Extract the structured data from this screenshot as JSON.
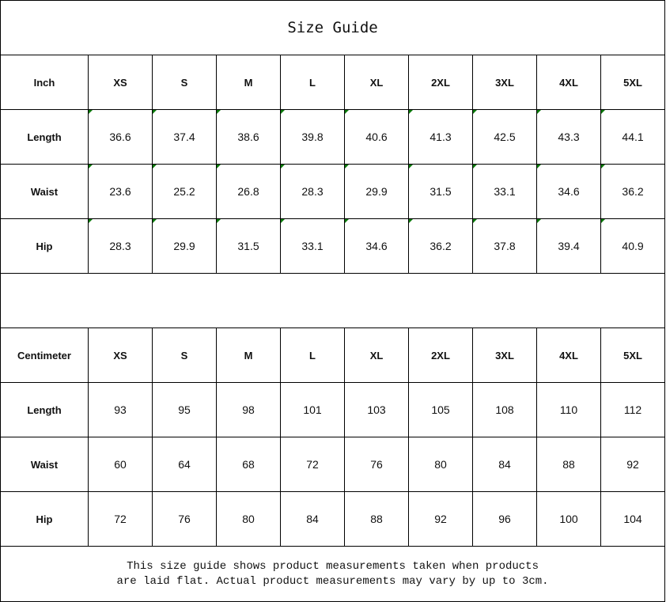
{
  "title": "Size Guide",
  "sizes": [
    "XS",
    "S",
    "M",
    "L",
    "XL",
    "2XL",
    "3XL",
    "4XL",
    "5XL"
  ],
  "comment_marker_color": "#0a7a0a",
  "inch": {
    "unit_label": "Inch",
    "rows": [
      {
        "label": "Length",
        "values": [
          "36.6",
          "37.4",
          "38.6",
          "39.8",
          "40.6",
          "41.3",
          "42.5",
          "43.3",
          "44.1"
        ]
      },
      {
        "label": "Waist",
        "values": [
          "23.6",
          "25.2",
          "26.8",
          "28.3",
          "29.9",
          "31.5",
          "33.1",
          "34.6",
          "36.2"
        ]
      },
      {
        "label": "Hip",
        "values": [
          "28.3",
          "29.9",
          "31.5",
          "33.1",
          "34.6",
          "36.2",
          "37.8",
          "39.4",
          "40.9"
        ]
      }
    ]
  },
  "centimeter": {
    "unit_label": "Centimeter",
    "rows": [
      {
        "label": "Length",
        "values": [
          "93",
          "95",
          "98",
          "101",
          "103",
          "105",
          "108",
          "110",
          "112"
        ]
      },
      {
        "label": "Waist",
        "values": [
          "60",
          "64",
          "68",
          "72",
          "76",
          "80",
          "84",
          "88",
          "92"
        ]
      },
      {
        "label": "Hip",
        "values": [
          "72",
          "76",
          "80",
          "84",
          "88",
          "92",
          "96",
          "100",
          "104"
        ]
      }
    ]
  },
  "footer": {
    "line1": "This size guide shows product measurements taken when products",
    "line2": "are laid flat. Actual product measurements may vary by up to 3cm."
  }
}
